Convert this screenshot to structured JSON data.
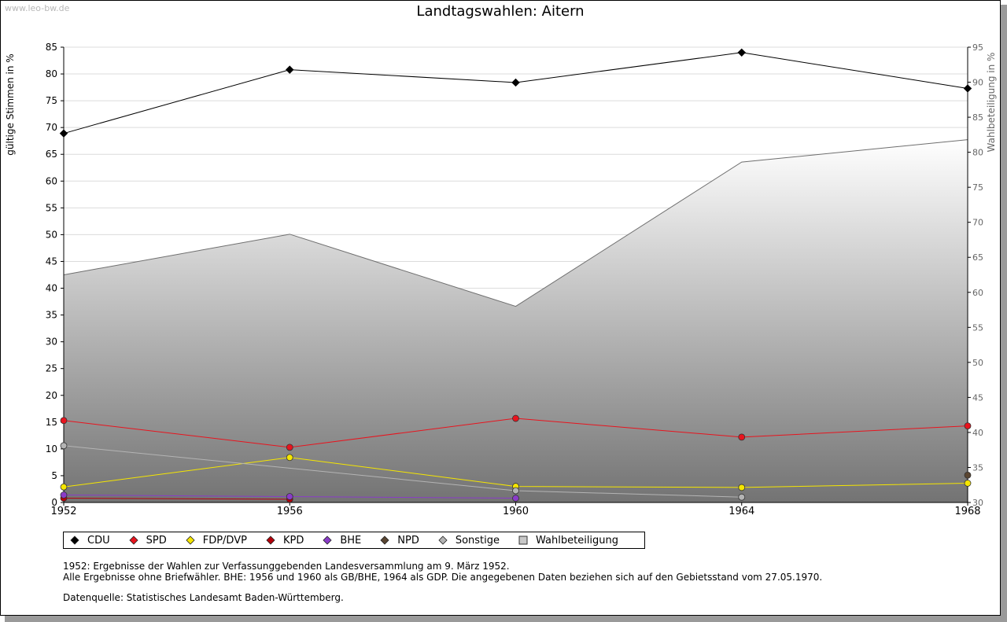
{
  "watermark": "www.leo-bw.de",
  "title": "Landtagswahlen: Aitern",
  "chart_data": {
    "type": "line",
    "title": "Landtagswahlen: Aitern",
    "xlabel": "",
    "ylabel": "gültige Stimmen in %",
    "y2label": "Wahlbeteiligung in %",
    "categories": [
      "1952",
      "1956",
      "1960",
      "1964",
      "1968"
    ],
    "ylim": [
      0,
      85
    ],
    "yticks": [
      0,
      5,
      10,
      15,
      20,
      25,
      30,
      35,
      40,
      45,
      50,
      55,
      60,
      65,
      70,
      75,
      80,
      85
    ],
    "y2lim": [
      30,
      95
    ],
    "y2ticks": [
      30,
      35,
      40,
      45,
      50,
      55,
      60,
      65,
      70,
      75,
      80,
      85,
      90,
      95
    ],
    "grid": true,
    "series": [
      {
        "name": "CDU",
        "color": "#000000",
        "values": [
          68.9,
          80.8,
          78.4,
          84.0,
          77.3
        ]
      },
      {
        "name": "SPD",
        "color": "#e8141e",
        "values": [
          15.3,
          10.3,
          15.7,
          12.2,
          14.3
        ]
      },
      {
        "name": "FDP/DVP",
        "color": "#f5e600",
        "values": [
          2.9,
          8.4,
          3.0,
          2.8,
          3.6
        ]
      },
      {
        "name": "KPD",
        "color": "#b4000a",
        "values": [
          0.8,
          0.6,
          null,
          null,
          null
        ]
      },
      {
        "name": "BHE",
        "color": "#8a3cc8",
        "values": [
          1.4,
          1.1,
          0.8,
          null,
          null
        ]
      },
      {
        "name": "NPD",
        "color": "#5a4632",
        "values": [
          null,
          null,
          null,
          null,
          5.1
        ]
      },
      {
        "name": "Sonstige",
        "color": "#b4b4b4",
        "values": [
          10.6,
          null,
          2.2,
          1.0,
          null
        ]
      }
    ],
    "turnout": {
      "name": "Wahlbeteiligung",
      "axis": "right",
      "values": [
        62.5,
        68.3,
        58.0,
        78.6,
        81.8
      ]
    }
  },
  "legend": [
    {
      "label": "CDU",
      "color": "#000000",
      "shape": "diamond"
    },
    {
      "label": "SPD",
      "color": "#e8141e",
      "shape": "diamond"
    },
    {
      "label": "FDP/DVP",
      "color": "#f5e600",
      "shape": "diamond"
    },
    {
      "label": "KPD",
      "color": "#b4000a",
      "shape": "diamond"
    },
    {
      "label": "BHE",
      "color": "#8a3cc8",
      "shape": "diamond"
    },
    {
      "label": "NPD",
      "color": "#5a4632",
      "shape": "diamond"
    },
    {
      "label": "Sonstige",
      "color": "#b4b4b4",
      "shape": "diamond"
    },
    {
      "label": "Wahlbeteiligung",
      "color": "#c8c8c8",
      "shape": "square"
    }
  ],
  "notes": {
    "line1": "1952: Ergebnisse der Wahlen zur Verfassunggebenden Landesversammlung am 9. März 1952.",
    "line2": "Alle Ergebnisse ohne Briefwähler. BHE: 1956 und 1960 als GB/BHE, 1964 als GDP. Die angegebenen Daten beziehen sich auf den Gebietsstand vom 27.05.1970.",
    "source": "Datenquelle: Statistisches Landesamt Baden-Württemberg."
  }
}
